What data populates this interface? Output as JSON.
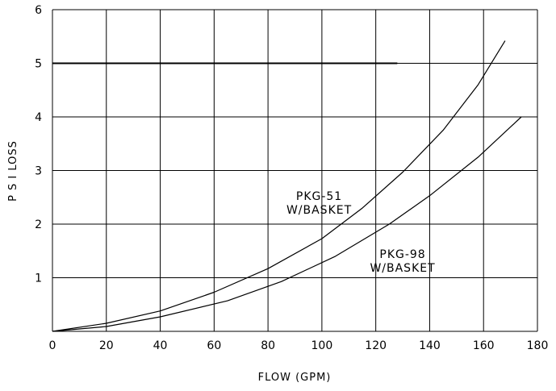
{
  "chart_data": {
    "type": "line",
    "xlabel": "FLOW (GPM)",
    "ylabel": "P S I LOSS",
    "xlim": [
      0,
      180
    ],
    "ylim": [
      0,
      6
    ],
    "xticks": [
      0,
      20,
      40,
      60,
      80,
      100,
      120,
      140,
      160,
      180
    ],
    "yticks": [
      1,
      2,
      3,
      4,
      5,
      6
    ],
    "grid": true,
    "series": [
      {
        "name": "PKG-51 W/BASKET",
        "points": [
          [
            0,
            0
          ],
          [
            20,
            0.15
          ],
          [
            40,
            0.38
          ],
          [
            60,
            0.73
          ],
          [
            80,
            1.17
          ],
          [
            100,
            1.73
          ],
          [
            115,
            2.3
          ],
          [
            130,
            2.97
          ],
          [
            145,
            3.75
          ],
          [
            158,
            4.6
          ],
          [
            168,
            5.42
          ]
        ]
      },
      {
        "name": "PKG-98 W/BASKET",
        "points": [
          [
            0,
            0
          ],
          [
            20,
            0.09
          ],
          [
            40,
            0.27
          ],
          [
            65,
            0.57
          ],
          [
            85,
            0.93
          ],
          [
            105,
            1.4
          ],
          [
            125,
            2.0
          ],
          [
            140,
            2.53
          ],
          [
            158,
            3.25
          ],
          [
            174,
            4.0
          ]
        ]
      }
    ],
    "annotations": [
      {
        "lines": [
          "PKG-51",
          "W/BASKET"
        ],
        "at": [
          99,
          2.45
        ]
      },
      {
        "lines": [
          "PKG-98",
          "W/BASKET"
        ],
        "at": [
          130,
          1.37
        ]
      }
    ],
    "reference_line": {
      "y": 5,
      "x_start": 0,
      "x_end": 128
    }
  }
}
